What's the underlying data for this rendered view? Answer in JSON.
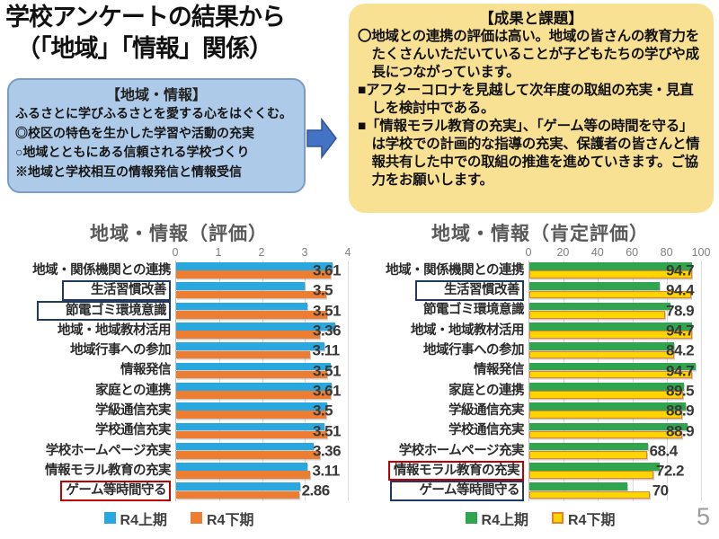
{
  "page": {
    "number": "5"
  },
  "title": {
    "line1": "学校アンケートの結果から",
    "line2": "（「地域」「情報」関係）"
  },
  "region_info_box": {
    "heading": "【地域・情報】",
    "lines": [
      "ふるさとに学びふるさとを愛する心をはぐくむ。",
      "◎校区の特色を生かした学習や活動の充実",
      "○地域とともにある信頼される学校づくり",
      "※地域と学校相互の情報発信と情報受信"
    ],
    "fill_color": "#AECAE9"
  },
  "results_box": {
    "heading": "【成果と課題】",
    "lines": [
      "〇地域との連携の評価は高い。地域の皆さんの教育力をたくさんいただいていることが子どもたちの学びや成長につながっています。",
      "■アフターコロナを見越して次年度の取組の充実・見直しを検討中である。",
      "■「情報モラル教育の充実」、「ゲーム等の時間を守る」は学校での計画的な指導の充実、保護者の皆さんと情報共有した中での取組の推進を進めていきます。ご協力をお願いします。"
    ],
    "fill_color": "#F9E194"
  },
  "chart_data": [
    {
      "type": "bar",
      "orientation": "horizontal",
      "title": "地域・情報（評価）",
      "xlim": [
        0,
        4
      ],
      "x_ticks": [
        0,
        1,
        2,
        3,
        4
      ],
      "grid": true,
      "legend_position": "bottom",
      "categories": [
        "地域・関係機関との連携",
        "生活習慣改善",
        "節電ゴミ環境意識",
        "地域・地域教材活用",
        "地域行事への参加",
        "情報発信",
        "家庭との連携",
        "学級通信充実",
        "学校通信充実",
        "学校ホームページ充実",
        "情報モラル教育の充実",
        "ゲーム等時間守る"
      ],
      "series": [
        {
          "name": "R4上期",
          "color": "#29A8DF",
          "values": [
            3.65,
            3.0,
            3.05,
            3.7,
            3.45,
            3.6,
            3.63,
            3.52,
            3.45,
            3.2,
            3.05,
            2.9
          ]
        },
        {
          "name": "R4下期",
          "color": "#ED7D31",
          "values": [
            3.61,
            3.5,
            3.51,
            3.36,
            3.11,
            3.51,
            3.61,
            3.5,
            3.51,
            3.36,
            3.11,
            2.86
          ]
        }
      ],
      "data_labels": [
        "3.61",
        "3.5",
        "3.51",
        "3.36",
        "3.11",
        "3.51",
        "3.61",
        "3.5",
        "3.51",
        "3.36",
        "3.11",
        "2.86"
      ],
      "highlights": [
        {
          "category_index": 1,
          "box_color": "#1F3864"
        },
        {
          "category_index": 2,
          "box_color": "#1F3864"
        },
        {
          "category_index": 11,
          "box_color": "#C00000"
        }
      ]
    },
    {
      "type": "bar",
      "orientation": "horizontal",
      "title": "地域・情報（肯定評価）",
      "xlim": [
        0,
        100
      ],
      "x_ticks": [
        0,
        20,
        40,
        60,
        80,
        100
      ],
      "grid": true,
      "legend_position": "bottom",
      "categories": [
        "地域・関係機関との連携",
        "生活習慣改善",
        "節電ゴミ環境意識",
        "地域・地域教材活用",
        "地域行事への参加",
        "情報発信",
        "家庭との連携",
        "学級通信充実",
        "学校通信充実",
        "学校ホームページ充実",
        "情報モラル教育の充実",
        "ゲーム等時間守る"
      ],
      "series": [
        {
          "name": "R4上期",
          "color": "#2FA64E",
          "values": [
            95,
            76,
            82,
            95,
            84.5,
            97,
            90,
            91,
            92,
            69,
            76,
            57
          ]
        },
        {
          "name": "R4下期",
          "color": "#FFD500",
          "border": "#E8812C",
          "values": [
            94.7,
            94.4,
            78.9,
            94.7,
            84.2,
            94.7,
            89.5,
            88.9,
            88.9,
            68.4,
            72.2,
            70
          ]
        }
      ],
      "data_labels": [
        "94.7",
        "94.4",
        "78.9",
        "94.7",
        "84.2",
        "94.7",
        "89.5",
        "88.9",
        "88.9",
        "68.4",
        "72.2",
        "70"
      ],
      "highlights": [
        {
          "category_index": 1,
          "box_color": "#1F3864"
        },
        {
          "category_index": 10,
          "box_color": "#C00000"
        },
        {
          "category_index": 11,
          "box_color": "#1F3864"
        }
      ]
    }
  ]
}
